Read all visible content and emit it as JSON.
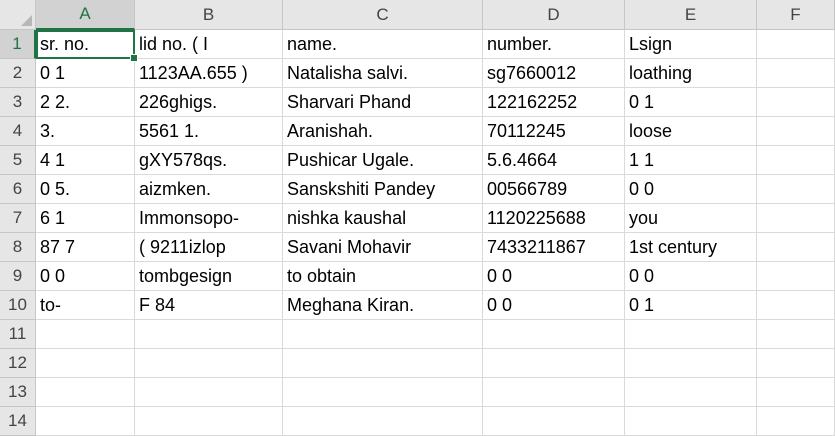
{
  "columns": [
    "A",
    "B",
    "C",
    "D",
    "E",
    "F"
  ],
  "rows": [
    "1",
    "2",
    "3",
    "4",
    "5",
    "6",
    "7",
    "8",
    "9",
    "10",
    "11",
    "12",
    "13",
    "14"
  ],
  "cells": [
    [
      "sr. no.",
      "lid no. ( I",
      "name.",
      "number.",
      "Lsign",
      ""
    ],
    [
      "0 1",
      "1123AA.655 )",
      "Natalisha salvi.",
      "sg7660012",
      "loathing",
      ""
    ],
    [
      "2 2.",
      "226ghigs.",
      "Sharvari Phand",
      "122162252",
      "0 1",
      ""
    ],
    [
      "3.",
      "5561 1.",
      "Aranishah.",
      "70112245",
      "loose",
      ""
    ],
    [
      "4 1",
      "gXY578qs.",
      "Pushicar Ugale.",
      "5.6.4664",
      "1 1",
      ""
    ],
    [
      "0 5.",
      "aizmken.",
      "Sanskshiti Pandey",
      "00566789",
      "0 0",
      ""
    ],
    [
      "6 1",
      "Immonsopo-",
      "nishka kaushal",
      "1120225688",
      "you",
      ""
    ],
    [
      "87 7",
      "( 9211izlop",
      "Savani Mohavir",
      "7433211867",
      "1st century",
      ""
    ],
    [
      "0 0",
      "tombgesign",
      "to obtain",
      "0 0",
      "0 0",
      ""
    ],
    [
      "to-",
      "F 84",
      "Meghana Kiran.",
      "0 0",
      "0 1",
      ""
    ],
    [
      "",
      "",
      "",
      "",
      "",
      ""
    ],
    [
      "",
      "",
      "",
      "",
      "",
      ""
    ],
    [
      "",
      "",
      "",
      "",
      "",
      ""
    ],
    [
      "",
      "",
      "",
      "",
      "",
      ""
    ]
  ],
  "selection": {
    "column": "A",
    "row": "1"
  },
  "colors": {
    "accent": "#217346",
    "header_bg": "#e6e6e6",
    "grid": "#dadada"
  }
}
